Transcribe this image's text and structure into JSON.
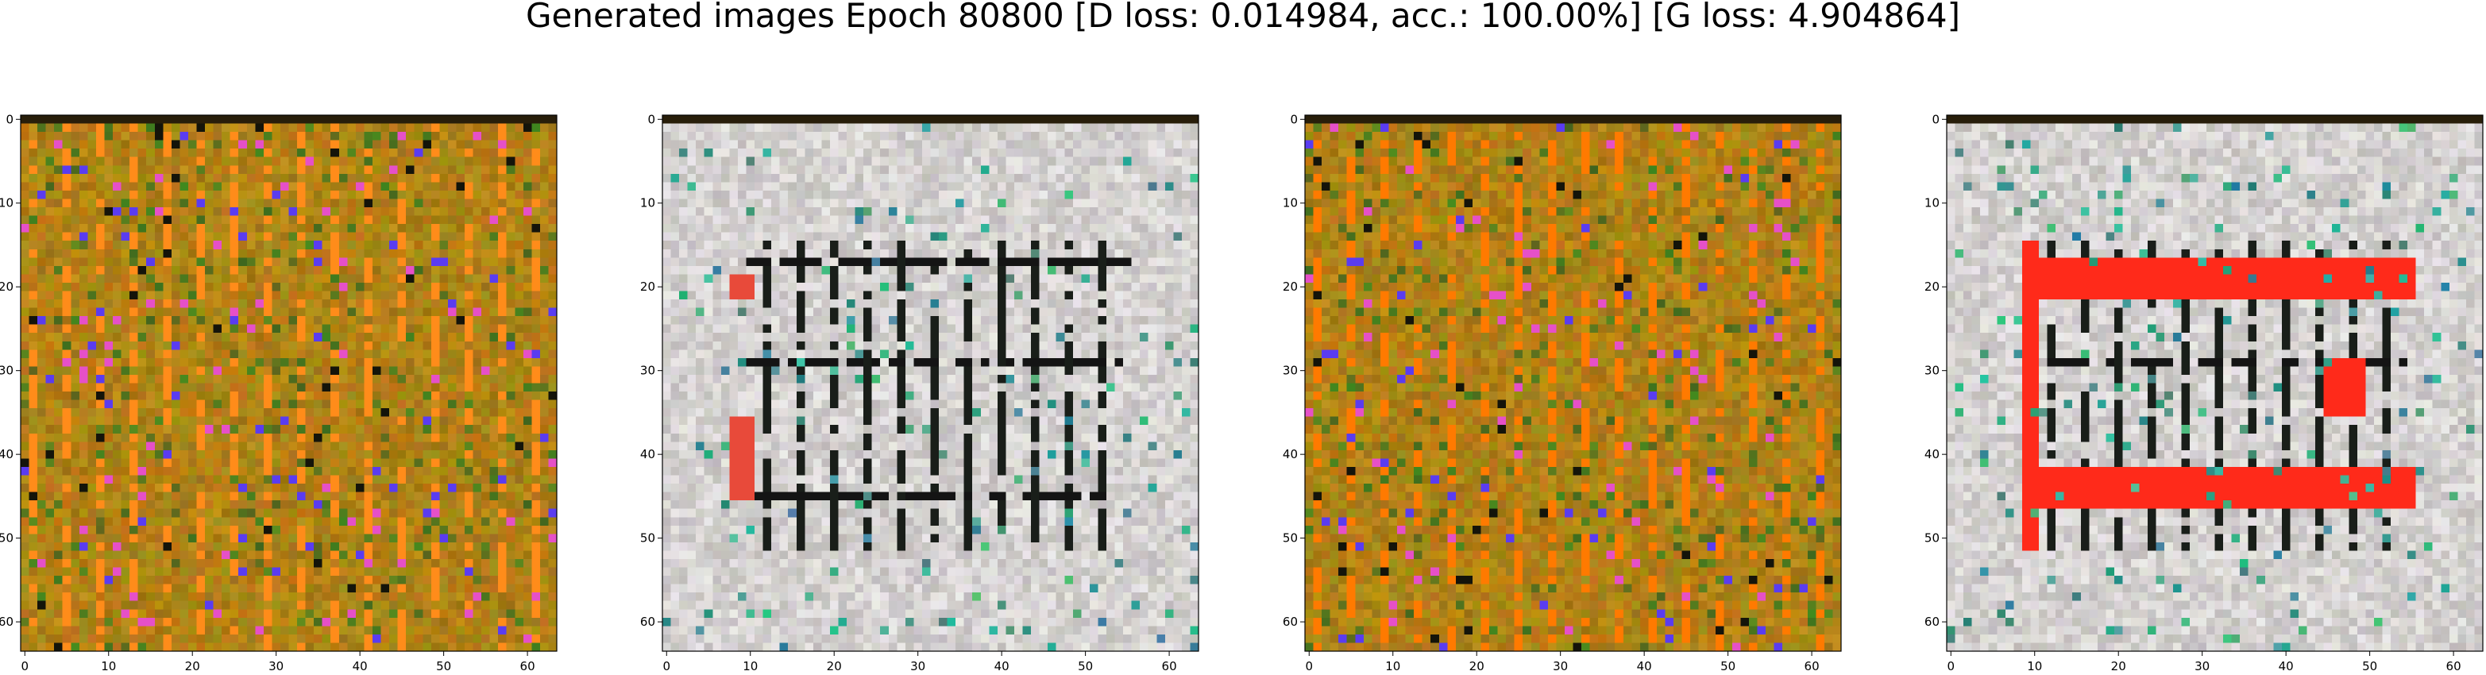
{
  "title": "Generated images Epoch 80800 [D loss: 0.014984, acc.: 100.00%] [G loss: 4.904864]",
  "chart_data": [
    {
      "type": "heatmap",
      "xticks": [
        0,
        10,
        20,
        30,
        40,
        50,
        60
      ],
      "yticks": [
        0,
        10,
        20,
        30,
        40,
        50,
        60
      ],
      "xlim": [
        -0.5,
        63.5
      ],
      "ylim": [
        63.5,
        -0.5
      ],
      "grid": false,
      "palette": "olive",
      "accent": "#ff8c1a"
    },
    {
      "type": "heatmap",
      "xticks": [
        0,
        10,
        20,
        30,
        40,
        50,
        60
      ],
      "yticks": [
        0,
        10,
        20,
        30,
        40,
        50,
        60
      ],
      "xlim": [
        -0.5,
        63.5
      ],
      "ylim": [
        63.5,
        -0.5
      ],
      "grid": false,
      "palette": "light",
      "accent": "#e84a3a"
    },
    {
      "type": "heatmap",
      "xticks": [
        0,
        10,
        20,
        30,
        40,
        50,
        60
      ],
      "yticks": [
        0,
        10,
        20,
        30,
        40,
        50,
        60
      ],
      "xlim": [
        -0.5,
        63.5
      ],
      "ylim": [
        63.5,
        -0.5
      ],
      "grid": false,
      "palette": "olive",
      "accent": "#ff7a00"
    },
    {
      "type": "heatmap",
      "xticks": [
        0,
        10,
        20,
        30,
        40,
        50,
        60
      ],
      "yticks": [
        0,
        10,
        20,
        30,
        40,
        50,
        60
      ],
      "xlim": [
        -0.5,
        63.5
      ],
      "ylim": [
        63.5,
        -0.5
      ],
      "grid": false,
      "palette": "light",
      "accent": "#ff2a1a"
    }
  ]
}
